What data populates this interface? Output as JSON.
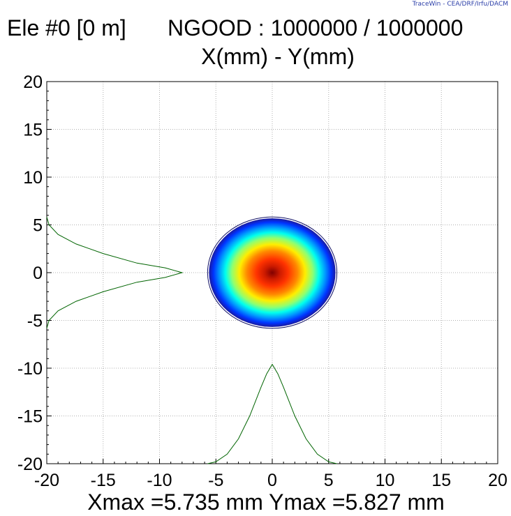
{
  "credit": "TraceWin - CEA/DRF/Irfu/DACM",
  "header": {
    "element": "Ele #0 [0 m]",
    "ngood": "NGOOD : 1000000 / 1000000",
    "subtitle": "X(mm) - Y(mm)"
  },
  "footer": "Xmax =5.735 mm  Ymax =5.827 mm",
  "chart_data": {
    "type": "scatter",
    "title": "X(mm) - Y(mm)",
    "xlabel": "X(mm)",
    "ylabel": "Y(mm)",
    "xlim": [
      -20,
      20
    ],
    "ylim": [
      -20,
      20
    ],
    "x_ticks": [
      -20,
      -15,
      -10,
      -5,
      0,
      5,
      10,
      15,
      20
    ],
    "y_ticks": [
      -20,
      -15,
      -10,
      -5,
      0,
      5,
      10,
      15,
      20
    ],
    "grid": true,
    "beam": {
      "center": [
        0,
        0
      ],
      "x_radius": 5.735,
      "y_radius": 5.827,
      "colors": [
        "#000080",
        "#0000ff",
        "#0080ff",
        "#00ffff",
        "#80ff80",
        "#ffff00",
        "#ff8000",
        "#ff0000",
        "#800000"
      ]
    },
    "x_profile": {
      "baseline_y": -20,
      "peak_y": -9.6,
      "points": [
        [
          -5.735,
          -20
        ],
        [
          -5,
          -19.8
        ],
        [
          -4,
          -19.0
        ],
        [
          -3,
          -17.4
        ],
        [
          -2,
          -15.0
        ],
        [
          -1,
          -12.0
        ],
        [
          -0.5,
          -10.6
        ],
        [
          0,
          -9.6
        ],
        [
          0.5,
          -10.6
        ],
        [
          1,
          -12.0
        ],
        [
          2,
          -15.0
        ],
        [
          3,
          -17.4
        ],
        [
          4,
          -19.0
        ],
        [
          5,
          -19.8
        ],
        [
          5.735,
          -20
        ]
      ],
      "color": "#006400"
    },
    "y_profile": {
      "baseline_x": -20,
      "peak_x": -8.0,
      "points": [
        [
          -20,
          5.827
        ],
        [
          -19.8,
          5
        ],
        [
          -19.0,
          4
        ],
        [
          -17.4,
          3
        ],
        [
          -15.0,
          2
        ],
        [
          -12.0,
          1
        ],
        [
          -9.5,
          0.5
        ],
        [
          -8.0,
          0
        ],
        [
          -9.5,
          -0.5
        ],
        [
          -12.0,
          -1
        ],
        [
          -15.0,
          -2
        ],
        [
          -17.4,
          -3
        ],
        [
          -19.0,
          -4
        ],
        [
          -19.8,
          -5
        ],
        [
          -20,
          -5.827
        ]
      ],
      "color": "#006400"
    },
    "footer_text": "Xmax =5.735 mm  Ymax =5.827 mm"
  }
}
